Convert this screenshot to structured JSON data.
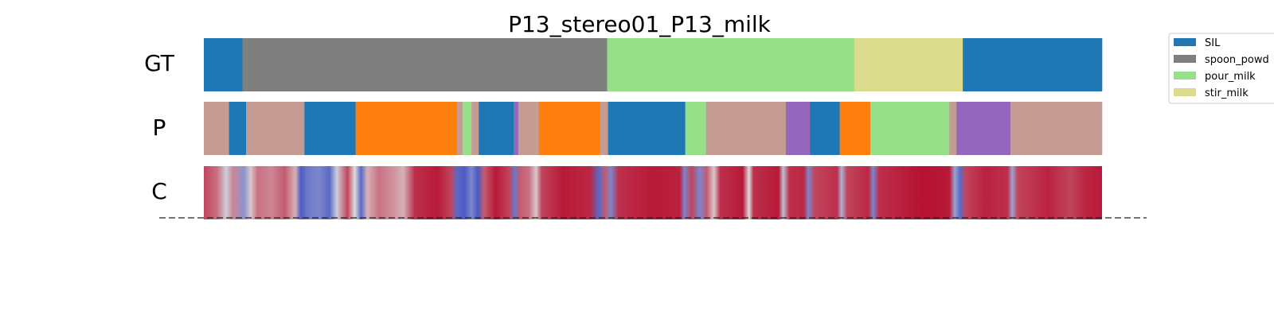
{
  "chart_data": {
    "type": "segmentation-timeline",
    "title": "P13_stereo01_P13_milk",
    "rows": [
      "GT",
      "P",
      "C"
    ],
    "x_range": [
      0,
      1000
    ],
    "colors": {
      "SIL": "#1f77b4",
      "spoon_powder": "#7f7f7f",
      "pour_milk": "#98df8a",
      "stir_milk": "#dbdb8d",
      "orange_class": "#ff7f0e",
      "pink_class": "#c49c94",
      "purple_class": "#9467bd"
    },
    "legend": [
      {
        "label": "SIL",
        "key": "SIL"
      },
      {
        "label": "spoon_powd",
        "key": "spoon_powder"
      },
      {
        "label": "pour_milk",
        "key": "pour_milk"
      },
      {
        "label": "stir_milk",
        "key": "stir_milk"
      }
    ],
    "gt_segments": [
      {
        "label": "SIL",
        "start": 0,
        "end": 43
      },
      {
        "label": "spoon_powder",
        "start": 43,
        "end": 449
      },
      {
        "label": "pour_milk",
        "start": 449,
        "end": 724
      },
      {
        "label": "stir_milk",
        "start": 724,
        "end": 845
      },
      {
        "label": "SIL",
        "start": 845,
        "end": 1000
      }
    ],
    "pred_segments": [
      {
        "label": "pink_class",
        "start": 0,
        "end": 28
      },
      {
        "label": "SIL",
        "start": 28,
        "end": 47
      },
      {
        "label": "pink_class",
        "start": 47,
        "end": 112
      },
      {
        "label": "SIL",
        "start": 112,
        "end": 169
      },
      {
        "label": "orange_class",
        "start": 169,
        "end": 282
      },
      {
        "label": "pink_class",
        "start": 282,
        "end": 288
      },
      {
        "label": "pour_milk",
        "start": 288,
        "end": 298
      },
      {
        "label": "pink_class",
        "start": 298,
        "end": 306
      },
      {
        "label": "SIL",
        "start": 306,
        "end": 345
      },
      {
        "label": "purple_class",
        "start": 345,
        "end": 350
      },
      {
        "label": "pink_class",
        "start": 350,
        "end": 373
      },
      {
        "label": "orange_class",
        "start": 373,
        "end": 441
      },
      {
        "label": "pink_class",
        "start": 441,
        "end": 450
      },
      {
        "label": "SIL",
        "start": 450,
        "end": 536
      },
      {
        "label": "pour_milk",
        "start": 536,
        "end": 559
      },
      {
        "label": "pink_class",
        "start": 559,
        "end": 648
      },
      {
        "label": "purple_class",
        "start": 648,
        "end": 675
      },
      {
        "label": "SIL",
        "start": 675,
        "end": 708
      },
      {
        "label": "orange_class",
        "start": 708,
        "end": 742
      },
      {
        "label": "pour_milk",
        "start": 742,
        "end": 830
      },
      {
        "label": "pink_class",
        "start": 830,
        "end": 838
      },
      {
        "label": "purple_class",
        "start": 838,
        "end": 898
      },
      {
        "label": "pink_class",
        "start": 898,
        "end": 1000
      }
    ],
    "confidence": [
      {
        "x": 0,
        "v": 0.85
      },
      {
        "x": 15,
        "v": 0.75
      },
      {
        "x": 25,
        "v": 0.45
      },
      {
        "x": 32,
        "v": 0.7
      },
      {
        "x": 45,
        "v": 0.25
      },
      {
        "x": 52,
        "v": 0.55
      },
      {
        "x": 60,
        "v": 0.75
      },
      {
        "x": 75,
        "v": 0.7
      },
      {
        "x": 90,
        "v": 0.8
      },
      {
        "x": 102,
        "v": 0.6
      },
      {
        "x": 108,
        "v": 0.05
      },
      {
        "x": 115,
        "v": 0.15
      },
      {
        "x": 128,
        "v": 0.2
      },
      {
        "x": 140,
        "v": 0.1
      },
      {
        "x": 148,
        "v": 0.45
      },
      {
        "x": 160,
        "v": 0.85
      },
      {
        "x": 168,
        "v": 0.5
      },
      {
        "x": 175,
        "v": 0.1
      },
      {
        "x": 182,
        "v": 0.6
      },
      {
        "x": 195,
        "v": 0.75
      },
      {
        "x": 215,
        "v": 0.65
      },
      {
        "x": 222,
        "v": 0.6
      },
      {
        "x": 235,
        "v": 0.9
      },
      {
        "x": 260,
        "v": 0.95
      },
      {
        "x": 275,
        "v": 0.85
      },
      {
        "x": 282,
        "v": 0.1
      },
      {
        "x": 290,
        "v": 0.05
      },
      {
        "x": 298,
        "v": 0.2
      },
      {
        "x": 305,
        "v": 0.05
      },
      {
        "x": 312,
        "v": 0.8
      },
      {
        "x": 325,
        "v": 0.95
      },
      {
        "x": 340,
        "v": 0.85
      },
      {
        "x": 346,
        "v": 0.15
      },
      {
        "x": 352,
        "v": 0.8
      },
      {
        "x": 362,
        "v": 0.75
      },
      {
        "x": 370,
        "v": 0.55
      },
      {
        "x": 376,
        "v": 0.85
      },
      {
        "x": 400,
        "v": 0.95
      },
      {
        "x": 430,
        "v": 0.92
      },
      {
        "x": 440,
        "v": 0.1
      },
      {
        "x": 447,
        "v": 0.8
      },
      {
        "x": 453,
        "v": 0.2
      },
      {
        "x": 462,
        "v": 0.9
      },
      {
        "x": 500,
        "v": 0.95
      },
      {
        "x": 530,
        "v": 0.93
      },
      {
        "x": 535,
        "v": 0.2
      },
      {
        "x": 543,
        "v": 0.85
      },
      {
        "x": 552,
        "v": 0.2
      },
      {
        "x": 560,
        "v": 0.8
      },
      {
        "x": 568,
        "v": 0.55
      },
      {
        "x": 575,
        "v": 0.9
      },
      {
        "x": 600,
        "v": 0.95
      },
      {
        "x": 607,
        "v": 0.5
      },
      {
        "x": 612,
        "v": 0.9
      },
      {
        "x": 640,
        "v": 0.95
      },
      {
        "x": 645,
        "v": 0.4
      },
      {
        "x": 652,
        "v": 0.9
      },
      {
        "x": 668,
        "v": 0.92
      },
      {
        "x": 673,
        "v": 0.2
      },
      {
        "x": 680,
        "v": 0.85
      },
      {
        "x": 705,
        "v": 0.9
      },
      {
        "x": 710,
        "v": 0.35
      },
      {
        "x": 716,
        "v": 0.85
      },
      {
        "x": 740,
        "v": 0.92
      },
      {
        "x": 745,
        "v": 0.2
      },
      {
        "x": 752,
        "v": 0.9
      },
      {
        "x": 800,
        "v": 0.97
      },
      {
        "x": 830,
        "v": 0.95
      },
      {
        "x": 836,
        "v": 0.3
      },
      {
        "x": 842,
        "v": 0.1
      },
      {
        "x": 848,
        "v": 0.85
      },
      {
        "x": 870,
        "v": 0.93
      },
      {
        "x": 895,
        "v": 0.9
      },
      {
        "x": 900,
        "v": 0.3
      },
      {
        "x": 906,
        "v": 0.85
      },
      {
        "x": 940,
        "v": 0.93
      },
      {
        "x": 965,
        "v": 0.85
      },
      {
        "x": 980,
        "v": 0.92
      },
      {
        "x": 1000,
        "v": 0.95
      }
    ]
  }
}
